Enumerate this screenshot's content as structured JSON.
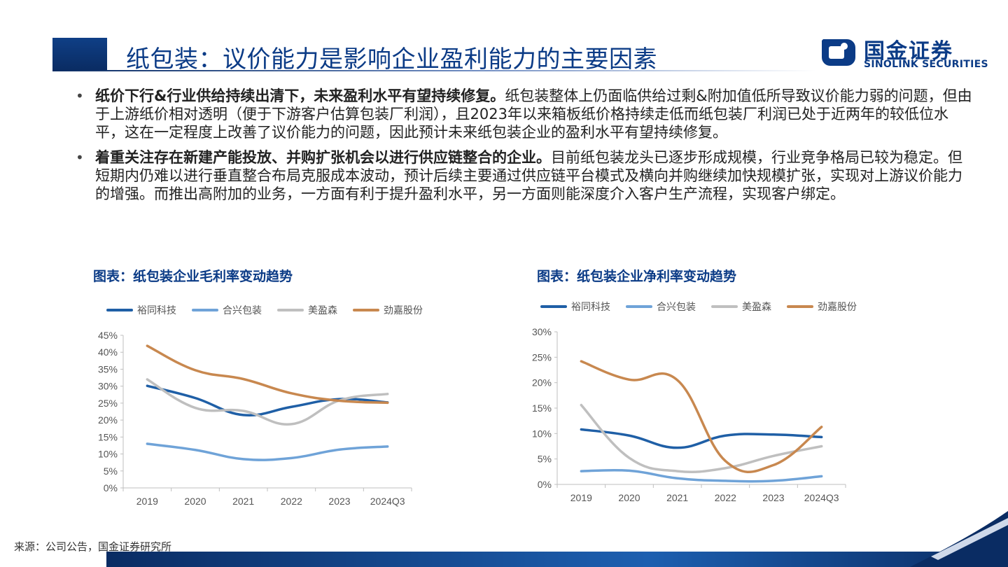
{
  "header": {
    "title": "纸包装：议价能力是影响企业盈利能力的主要因素",
    "logo_cn": "国金证券",
    "logo_en": "SINOLINK SECURITIES",
    "brand_color": "#0b3b86"
  },
  "bullets": [
    {
      "bold": "纸价下行&行业供给持续出清下，未来盈利水平有望持续修复。",
      "text": "纸包装整体上仍面临供给过剩&附加值低所导致议价能力弱的问题，但由于上游纸价相对透明（便于下游客户估算包装厂利润），且2023年以来箱板纸价格持续走低而纸包装厂利润已处于近两年的较低位水平，这在一定程度上改善了议价能力的问题，因此预计未来纸包装企业的盈利水平有望持续修复。"
    },
    {
      "bold": "着重关注存在新建产能投放、并购扩张机会以进行供应链整合的企业。",
      "text": "目前纸包装龙头已逐步形成规模，行业竞争格局已较为稳定。但短期内仍难以进行垂直整合布局克服成本波动，预计后续主要通过供应链平台模式及横向并购继续加快规模扩张，实现对上游议价能力的增强。而推出高附加的业务，一方面有利于提升盈利水平，另一方面则能深度介入客户生产流程，实现客户绑定。"
    }
  ],
  "chart_data": [
    {
      "type": "line",
      "title": "图表：纸包装企业毛利率变动趋势",
      "categories": [
        "2019",
        "2020",
        "2021",
        "2022",
        "2023",
        "2024Q3"
      ],
      "ylim": [
        0,
        45
      ],
      "yticks": [
        "0%",
        "5%",
        "10%",
        "15%",
        "20%",
        "25%",
        "30%",
        "35%",
        "40%",
        "45%"
      ],
      "legend_position": "top",
      "grid": false,
      "series": [
        {
          "name": "裕同科技",
          "color": "#1f5fa6",
          "values": [
            30.1,
            26.5,
            21.5,
            23.9,
            26.2,
            25.2
          ]
        },
        {
          "name": "合兴包装",
          "color": "#6fa3d8",
          "values": [
            13.0,
            11.2,
            8.5,
            8.8,
            11.3,
            12.2
          ]
        },
        {
          "name": "美盈森",
          "color": "#bfbfbf",
          "values": [
            32.0,
            23.6,
            22.7,
            18.8,
            25.8,
            27.7
          ]
        },
        {
          "name": "劲嘉股份",
          "color": "#c8884f",
          "values": [
            41.9,
            34.7,
            32.1,
            27.9,
            25.7,
            25.1
          ]
        }
      ]
    },
    {
      "type": "line",
      "title": "图表：纸包装企业净利率变动趋势",
      "categories": [
        "2019",
        "2020",
        "2021",
        "2022",
        "2023",
        "2024Q3"
      ],
      "ylim": [
        0,
        30
      ],
      "yticks": [
        "0%",
        "5%",
        "10%",
        "15%",
        "20%",
        "25%",
        "30%"
      ],
      "legend_position": "top",
      "grid": false,
      "series": [
        {
          "name": "裕同科技",
          "color": "#1f5fa6",
          "values": [
            10.8,
            9.6,
            7.2,
            9.6,
            9.8,
            9.3
          ]
        },
        {
          "name": "合兴包装",
          "color": "#6fa3d8",
          "values": [
            2.6,
            2.7,
            1.2,
            0.7,
            0.7,
            1.6
          ]
        },
        {
          "name": "美盈森",
          "color": "#bfbfbf",
          "values": [
            15.6,
            5.2,
            2.6,
            3.2,
            5.6,
            7.5
          ]
        },
        {
          "name": "劲嘉股份",
          "color": "#c8884f",
          "values": [
            24.2,
            20.6,
            20.5,
            4.6,
            3.8,
            11.3
          ]
        }
      ]
    }
  ],
  "source": "来源：公司公告，国金证券研究所"
}
